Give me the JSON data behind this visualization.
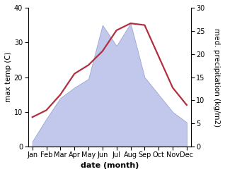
{
  "months": [
    "Jan",
    "Feb",
    "Mar",
    "Apr",
    "May",
    "Jun",
    "Jul",
    "Aug",
    "Sep",
    "Oct",
    "Nov",
    "Dec"
  ],
  "temperature": [
    8.5,
    10.5,
    15.0,
    21.0,
    23.5,
    27.5,
    33.5,
    35.5,
    35.0,
    26.0,
    17.0,
    12.0
  ],
  "precipitation_scaled": [
    1.5,
    8.0,
    14.0,
    17.0,
    19.5,
    35.0,
    29.0,
    35.5,
    20.0,
    15.0,
    10.0,
    7.0
  ],
  "temp_color": "#b03040",
  "precip_fill_color": "#b8bfe8",
  "precip_edge_color": "#9099cc",
  "temp_ylim": [
    0,
    40
  ],
  "precip_ylim": [
    0,
    30
  ],
  "temp_yticks": [
    0,
    10,
    20,
    30,
    40
  ],
  "precip_yticks": [
    0,
    5,
    10,
    15,
    20,
    25,
    30
  ],
  "xlabel": "date (month)",
  "ylabel_left": "max temp (C)",
  "ylabel_right": "med. precipitation (kg/m2)",
  "xlabel_fontsize": 8,
  "ylabel_fontsize": 7.5,
  "tick_fontsize": 7,
  "line_width": 1.6
}
